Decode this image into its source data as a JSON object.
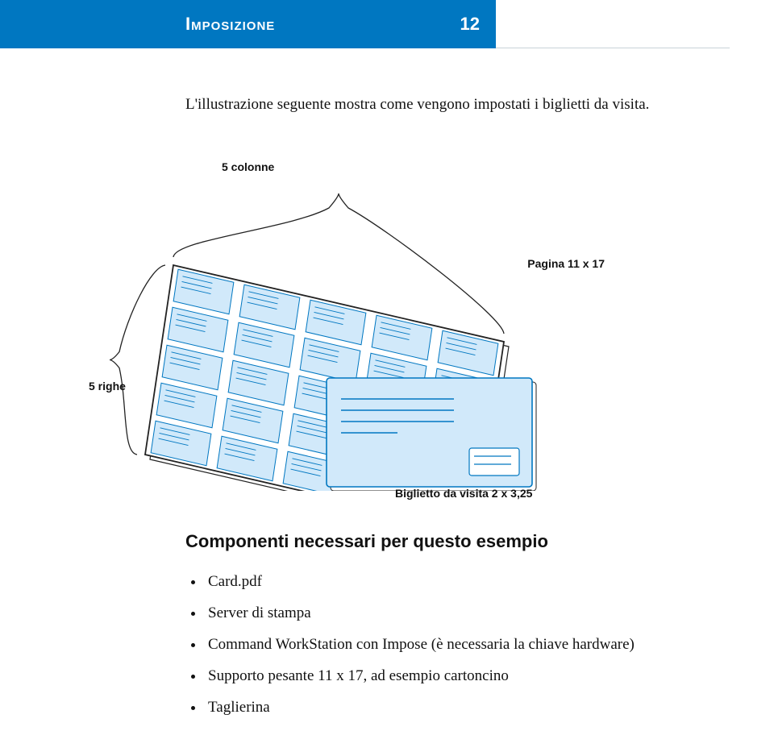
{
  "header": {
    "title_text": "Imposizione",
    "page_number": "12",
    "bar_color": "#0077c1",
    "title_color": "#ffffff"
  },
  "intro_text": "L'illustrazione seguente mostra come vengono impostati i biglietti da visita.",
  "diagram": {
    "label_columns": "5 colonne",
    "label_page": "Pagina 11 x 17",
    "label_rows": "5 righe",
    "label_card": "Biglietto da visita 2 x 3,25",
    "grid_cols": 5,
    "grid_rows": 5,
    "card_fill": "#d1e9fa",
    "card_stroke": "#0077c1",
    "sheet_fill": "#ffffff",
    "sheet_stroke": "#222222",
    "brace_color": "#222222",
    "line_color": "#0077c1",
    "shadow_color": "#222222"
  },
  "components": {
    "section_title": "Componenti necessari per questo esempio",
    "items": [
      "Card.pdf",
      "Server di stampa",
      "Command WorkStation con Impose (è necessaria la chiave hardware)",
      "Supporto pesante 11 x 17, ad esempio cartoncino",
      "Taglierina"
    ]
  }
}
